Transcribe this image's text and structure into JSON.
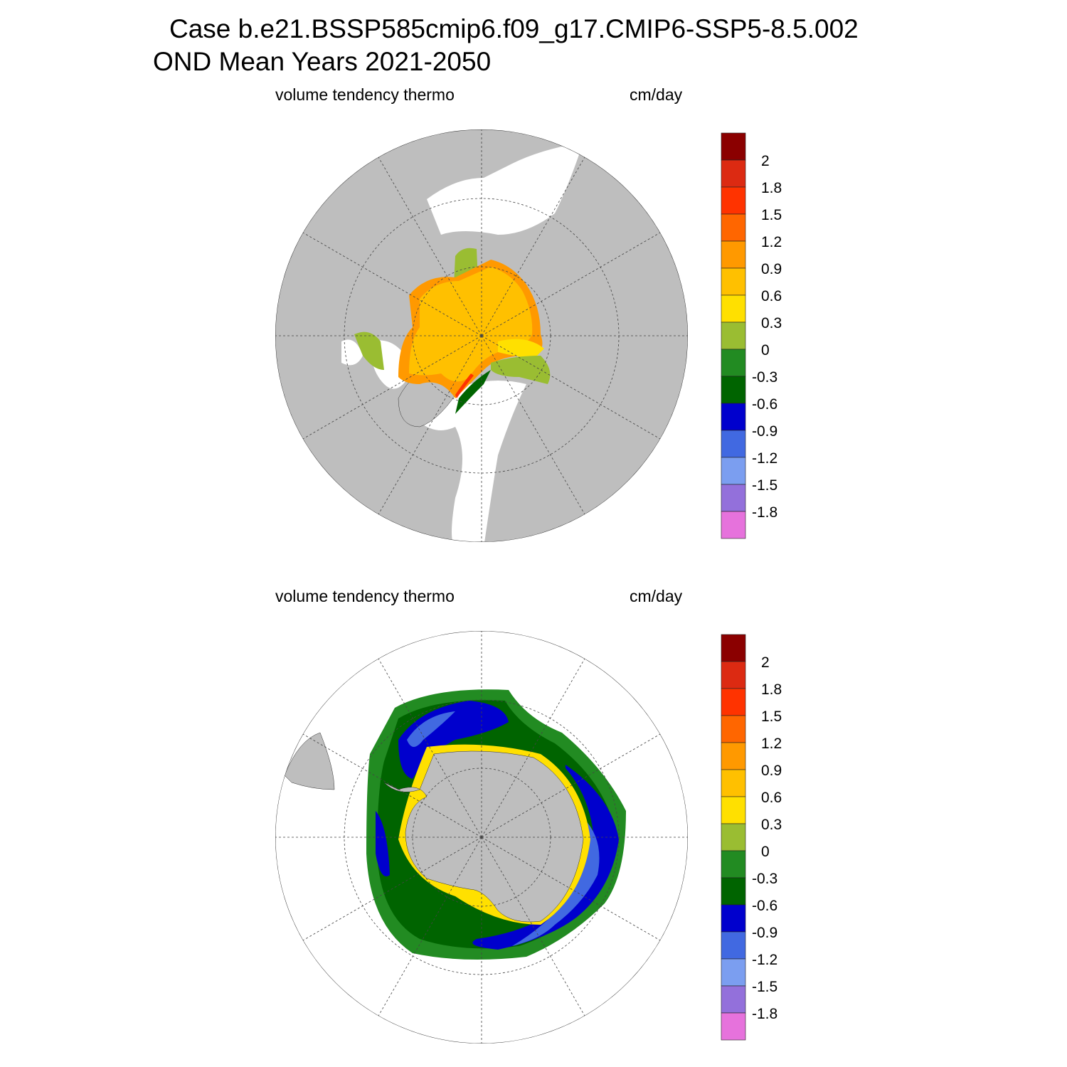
{
  "title": {
    "line1": "Case b.e21.BSSP585cmip6.f09_g17.CMIP6-SSP5-8.5.002",
    "line2": "OND Mean   Years 2021-2050"
  },
  "panels": [
    {
      "name": "north",
      "variable": "volume tendency thermo",
      "units": "cm/day",
      "hemisphere": "Arctic"
    },
    {
      "name": "south",
      "variable": "volume tendency thermo",
      "units": "cm/day",
      "hemisphere": "Antarctic"
    }
  ],
  "colorbar": {
    "labels": [
      "2",
      "1.8",
      "1.5",
      "1.2",
      "0.9",
      "0.6",
      "0.3",
      "0",
      "-0.3",
      "-0.6",
      "-0.9",
      "-1.2",
      "-1.5",
      "-1.8"
    ],
    "colors": [
      "#8b0000",
      "#dc2a12",
      "#ff3300",
      "#ff6600",
      "#ff9900",
      "#ffc000",
      "#ffe000",
      "#9abd32",
      "#228b22",
      "#006400",
      "#0000cd",
      "#4169e1",
      "#7b9ef0",
      "#9370db",
      "#e672dc"
    ]
  },
  "colors": {
    "land": "#bebebe",
    "ocean": "#ffffff"
  }
}
